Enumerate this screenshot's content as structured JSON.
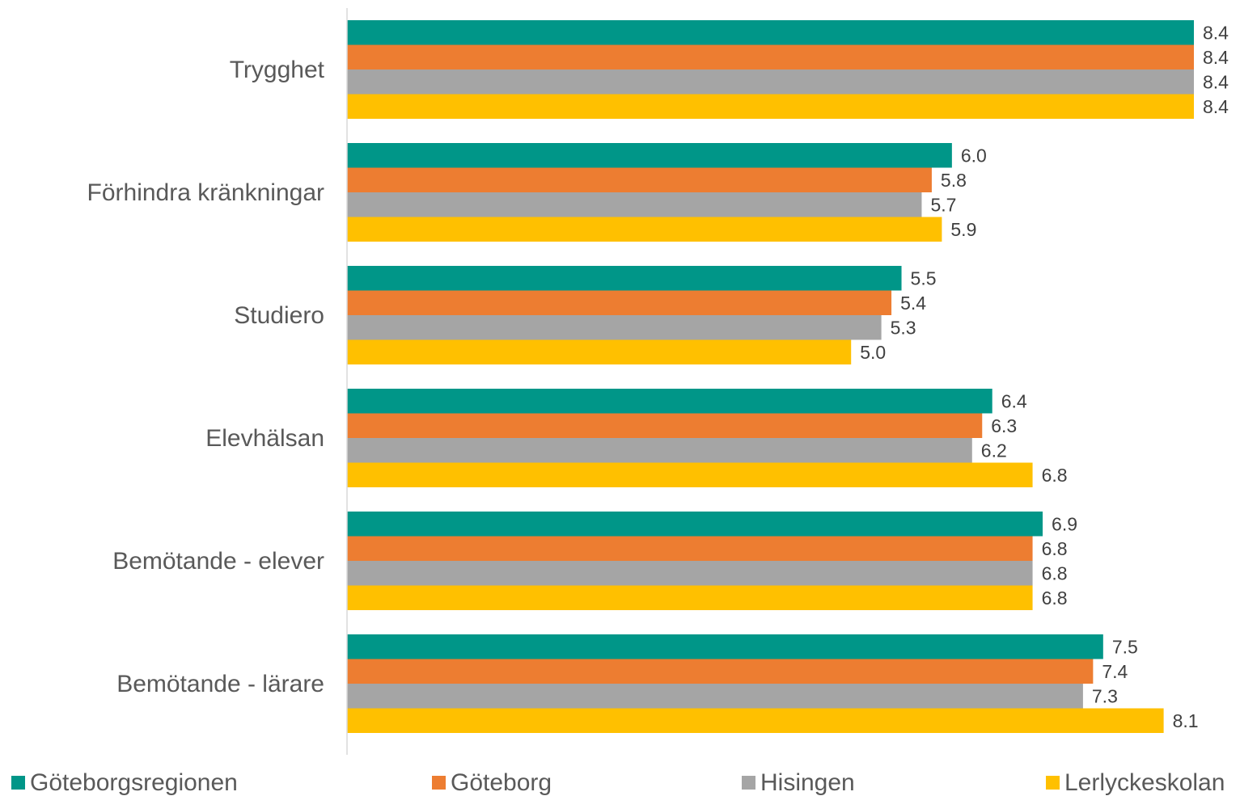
{
  "chart_data": {
    "type": "bar",
    "orientation": "horizontal",
    "categories": [
      "Trygghet",
      "Förhindra kränkningar",
      "Studiero",
      "Elevhälsan",
      "Bemötande - elever",
      "Bemötande - lärare"
    ],
    "series": [
      {
        "name": "Göteborgsregionen",
        "color": "#009688",
        "values": [
          8.4,
          6.0,
          5.5,
          6.4,
          6.9,
          7.5
        ]
      },
      {
        "name": "Göteborg",
        "color": "#ED7D31",
        "values": [
          8.4,
          5.8,
          5.4,
          6.3,
          6.8,
          7.4
        ]
      },
      {
        "name": "Hisingen",
        "color": "#A5A5A5",
        "values": [
          8.4,
          5.7,
          5.3,
          6.2,
          6.8,
          7.3
        ]
      },
      {
        "name": "Lerlyckeskolan",
        "color": "#FFC000",
        "values": [
          8.4,
          5.9,
          5.0,
          6.8,
          6.8,
          8.1
        ]
      }
    ],
    "value_labels": [
      [
        "8.4",
        "6.0",
        "5.5",
        "6.4",
        "6.9",
        "7.5"
      ],
      [
        "8.4",
        "5.8",
        "5.4",
        "6.3",
        "6.8",
        "7.4"
      ],
      [
        "8.4",
        "5.7",
        "5.3",
        "6.2",
        "6.8",
        "7.3"
      ],
      [
        "8.4",
        "5.9",
        "5.0",
        "6.8",
        "6.8",
        "8.1"
      ]
    ],
    "xlim": [
      0,
      8.5
    ],
    "grid": false,
    "legend_position": "bottom",
    "axis_color": "#D9D9D9"
  }
}
